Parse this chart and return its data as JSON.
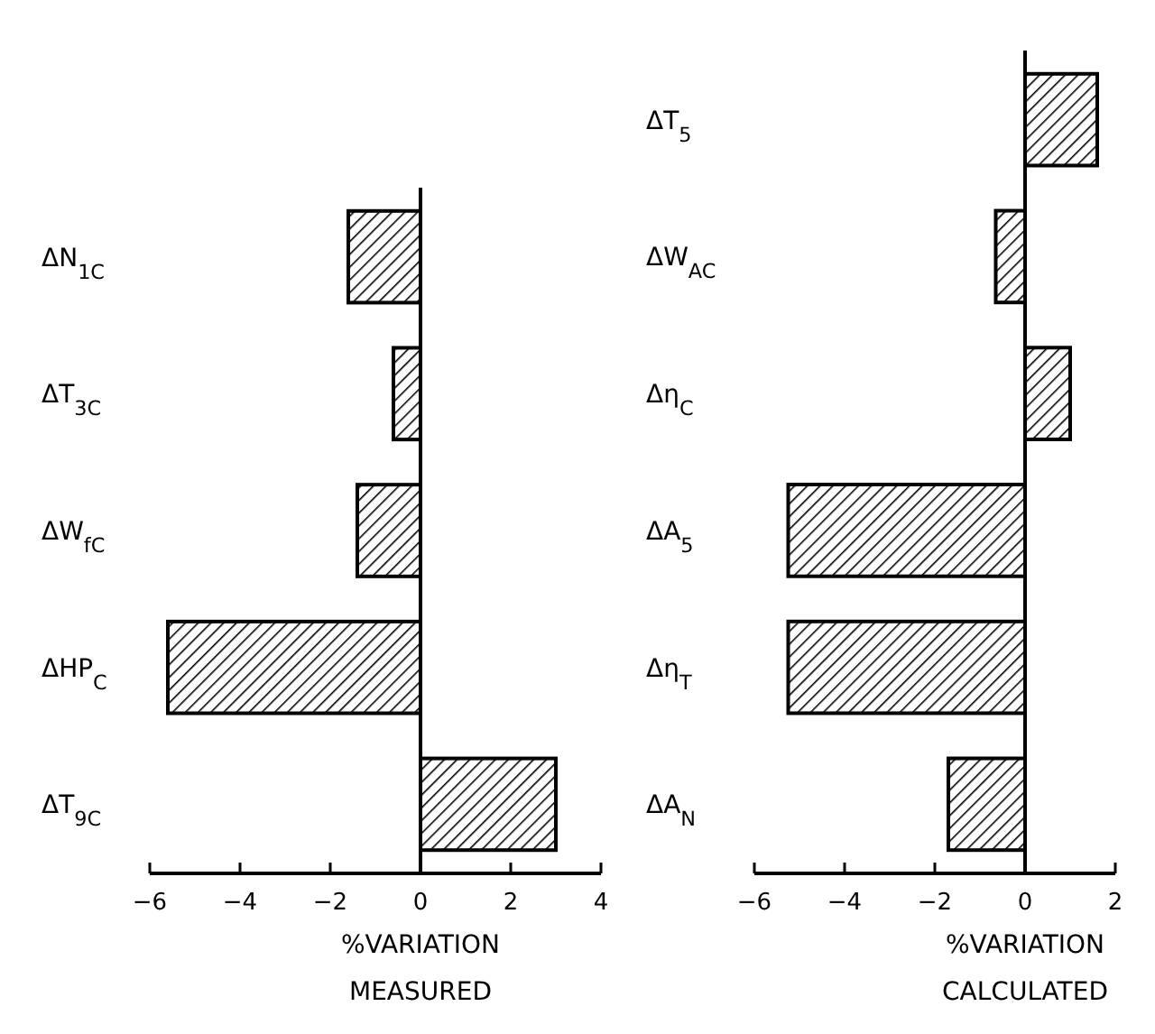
{
  "chart_data": [
    {
      "type": "bar",
      "orientation": "horizontal",
      "title": "MEASURED",
      "xlabel": "%VARIATION",
      "categories": [
        "ΔN$_{1C}$",
        "ΔT$_{3C}$",
        "ΔW$_{fC}$",
        "ΔHP$_{C}$",
        "ΔT$_{9C}$"
      ],
      "values": [
        -1.6,
        -0.6,
        -1.4,
        -5.6,
        3.0
      ],
      "color": "#000000",
      "xlim": [
        -6,
        4
      ],
      "xticks": [
        -6,
        -4,
        -2,
        0,
        2,
        4
      ]
    },
    {
      "type": "bar",
      "orientation": "horizontal",
      "title": "CALCULATED",
      "xlabel": "%VARIATION",
      "categories": [
        "ΔT$_{5}$",
        "ΔW$_{AC}$",
        "Δη$_{C}$",
        "ΔA$_{5}$",
        "Δη$_{T}$",
        "ΔA$_{N}$"
      ],
      "values": [
        1.6,
        -0.65,
        1.0,
        -5.25,
        -5.25,
        -1.7
      ],
      "color": "#000000",
      "xlim": [
        -6,
        2
      ],
      "xticks": [
        -6,
        -4,
        -2,
        0,
        2
      ]
    }
  ]
}
